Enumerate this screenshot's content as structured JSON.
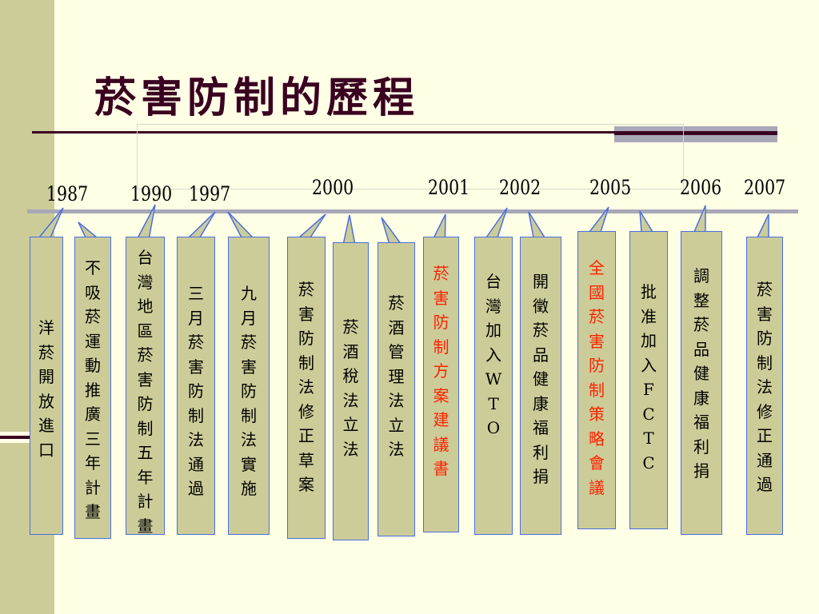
{
  "title": "菸害防制的歷程",
  "years": [
    "1987",
    "1990",
    "1997",
    "2000",
    "2001",
    "2002",
    "2005",
    "2006",
    "2007"
  ],
  "events": [
    {
      "text": "洋菸開放進口",
      "highlight": false
    },
    {
      "text": "不吸菸運動推廣三年計畫",
      "highlight": false
    },
    {
      "text": "台灣地區菸害防制五年計畫",
      "highlight": false
    },
    {
      "text": "三月菸害防制法通過",
      "highlight": false
    },
    {
      "text": "九月菸害防制法實施",
      "highlight": false
    },
    {
      "text": "菸害防制法修正草案",
      "highlight": false
    },
    {
      "text": "菸酒稅法立法",
      "highlight": false
    },
    {
      "text": "菸酒管理法立法",
      "highlight": false
    },
    {
      "text": "菸害防制方案建議書",
      "highlight": true
    },
    {
      "text": "台灣加入WTO",
      "highlight": false
    },
    {
      "text": "開徵菸品健康福利捐",
      "highlight": false
    },
    {
      "text": "全國菸害防制策略會議",
      "highlight": true
    },
    {
      "text": "批准加入FCTC",
      "highlight": false
    },
    {
      "text": "調整菸品健康福利捐",
      "highlight": false
    },
    {
      "text": "菸害防制法修正通過",
      "highlight": false
    }
  ],
  "colors": {
    "card_fill": "#CCCC99",
    "card_border": "#4A6FE0",
    "highlight_text": "#FF2200",
    "title": "#3A0020",
    "axis": "#A8A8B8"
  }
}
